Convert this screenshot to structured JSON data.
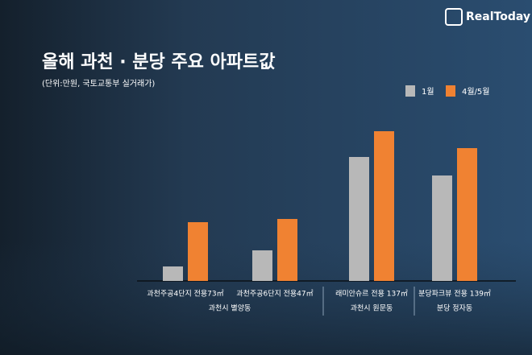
{
  "chart_data": {
    "type": "bar",
    "title": "올해 과천 · 분당 주요 아파트값",
    "subtitle": "(단위:만원, 국토교통부 실거래가)",
    "brand": "RealToday",
    "categories": [
      "과천주공4단지 전용73㎡",
      "과천주공6단지 전용47㎡",
      "래미안슈르 전용 137㎡",
      "분당파크뷰 전용 139㎡"
    ],
    "groups": [
      "과천시 별양동",
      "과천시 원문동",
      "분당 정자동"
    ],
    "series": [
      {
        "name": "1월",
        "color": "#b8b8b8",
        "values": [
          18,
          38,
          154,
          131
        ]
      },
      {
        "name": "4월/5월",
        "color": "#f08232",
        "values": [
          73,
          77,
          186,
          165
        ]
      }
    ],
    "ylim": [
      0,
      200
    ]
  }
}
